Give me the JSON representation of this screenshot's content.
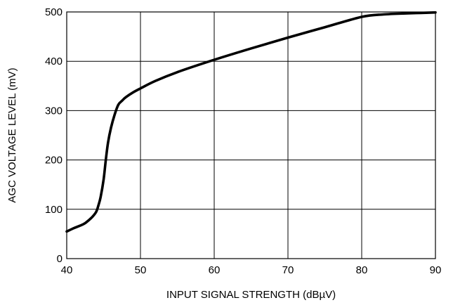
{
  "chart_data": {
    "type": "line",
    "xlabel": "INPUT SIGNAL STRENGTH (dBµV)",
    "ylabel": "AGC VOLTAGE LEVEL (mV)",
    "xlim": [
      40,
      90
    ],
    "ylim": [
      0,
      500
    ],
    "x_ticks": [
      40,
      50,
      60,
      70,
      80,
      90
    ],
    "y_ticks": [
      0,
      100,
      200,
      300,
      400,
      500
    ],
    "grid": true,
    "series": [
      {
        "values_x": [
          40,
          41,
          42,
          42.5,
          43,
          43.5,
          44,
          44.3,
          44.6,
          45,
          45.3,
          45.6,
          46,
          46.5,
          47,
          47.5,
          48,
          49,
          50,
          52,
          55,
          60,
          65,
          70,
          75,
          80,
          83,
          86,
          88,
          90
        ],
        "values_y": [
          55,
          62,
          68,
          72,
          78,
          85,
          95,
          108,
          125,
          160,
          200,
          235,
          265,
          292,
          312,
          320,
          327,
          337,
          345,
          360,
          378,
          403,
          426,
          448,
          469,
          490,
          495,
          497,
          498,
          499
        ]
      }
    ],
    "colors": {
      "line": "#000000",
      "grid": "#000000",
      "background": "#ffffff"
    }
  }
}
